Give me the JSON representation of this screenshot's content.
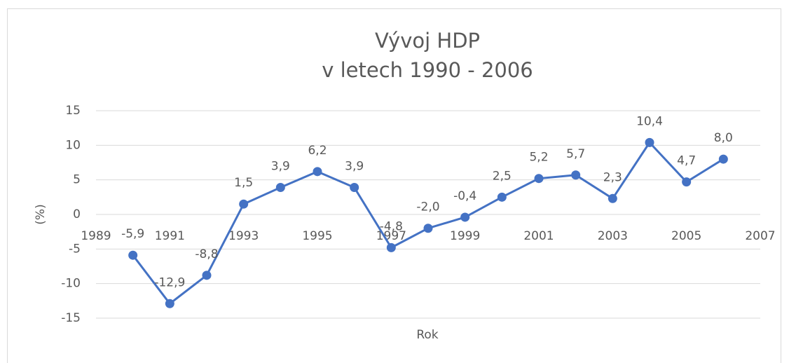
{
  "chart_data": {
    "type": "line",
    "title": [
      "Vývoj HDP",
      "v letech 1990 - 2006"
    ],
    "x_label": "Rok",
    "y_label": "(%)",
    "x": [
      1990,
      1991,
      1992,
      1993,
      1994,
      1995,
      1996,
      1997,
      1998,
      1999,
      2000,
      2001,
      2002,
      2003,
      2004,
      2005,
      2006
    ],
    "values": [
      -5.9,
      -12.9,
      -8.8,
      1.5,
      3.9,
      6.2,
      3.9,
      -4.8,
      -2.0,
      -0.4,
      2.5,
      5.2,
      5.7,
      2.3,
      10.4,
      4.7,
      8.0
    ],
    "value_labels": [
      "-5,9",
      "-12,9",
      "-8,8",
      "1,5",
      "3,9",
      "6,2",
      "3,9",
      "-4,8",
      "-2,0",
      "-0,4",
      "2,5",
      "5,2",
      "5,7",
      "2,3",
      "10,4",
      "4,7",
      "8,0"
    ],
    "color": "#4472c4",
    "xlim": [
      1989,
      2007
    ],
    "xticks": [
      1989,
      1991,
      1993,
      1995,
      1997,
      1999,
      2001,
      2003,
      2005,
      2007
    ],
    "ylim": [
      -15,
      15
    ],
    "yticks": [
      -15,
      -10,
      -5,
      0,
      5,
      10,
      15
    ],
    "grid": true
  }
}
